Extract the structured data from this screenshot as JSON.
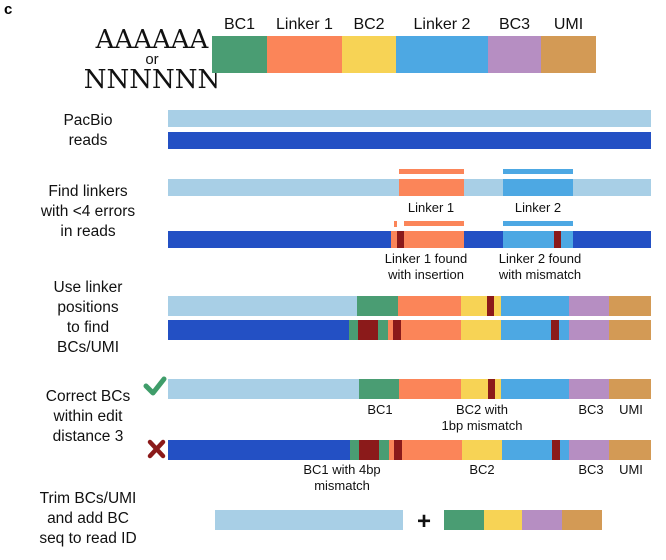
{
  "panel_label": "c",
  "colors": {
    "light_read": "#a8cfe6",
    "dark_read": "#2350c4",
    "bc1": "#4a9d73",
    "linker1": "#fb8559",
    "bc2": "#f7d355",
    "linker2": "#4da8e3",
    "bc3": "#b68ec2",
    "umi": "#d39a55",
    "error": "#8b1a1a",
    "check": "#3f9d6a",
    "cross": "#8b1a1a"
  },
  "structure": {
    "polya": "AAAAAA",
    "or": "or",
    "polyn": "NNNNNN",
    "segments": [
      "BC1",
      "Linker 1",
      "BC2",
      "Linker 2",
      "BC3",
      "UMI"
    ]
  },
  "steps": {
    "pacbio": [
      "PacBio",
      "reads"
    ],
    "find_linkers": [
      "Find linkers",
      "with <4 errors",
      "in reads"
    ],
    "use_positions": [
      "Use linker",
      "positions",
      "to find",
      "BCs/UMI"
    ],
    "correct": [
      "Correct BCs",
      "within edit",
      "distance 3"
    ],
    "trim": [
      "Trim BCs/UMI",
      "and add BC",
      "seq to read ID"
    ]
  },
  "labels": {
    "linker1": "Linker 1",
    "linker2": "Linker 2",
    "linker1_found": [
      "Linker 1 found",
      "with insertion"
    ],
    "linker2_found": [
      "Linker 2 found",
      "with mismatch"
    ],
    "ok_bc1": "BC1",
    "ok_bc2": [
      "BC2 with",
      "1bp mismatch"
    ],
    "ok_bc3": "BC3",
    "ok_umi": "UMI",
    "bad_bc1": [
      "BC1 with 4bp",
      "mismatch"
    ],
    "bad_bc2": "BC2",
    "bad_bc3": "BC3",
    "bad_umi": "UMI",
    "plus": "+"
  }
}
